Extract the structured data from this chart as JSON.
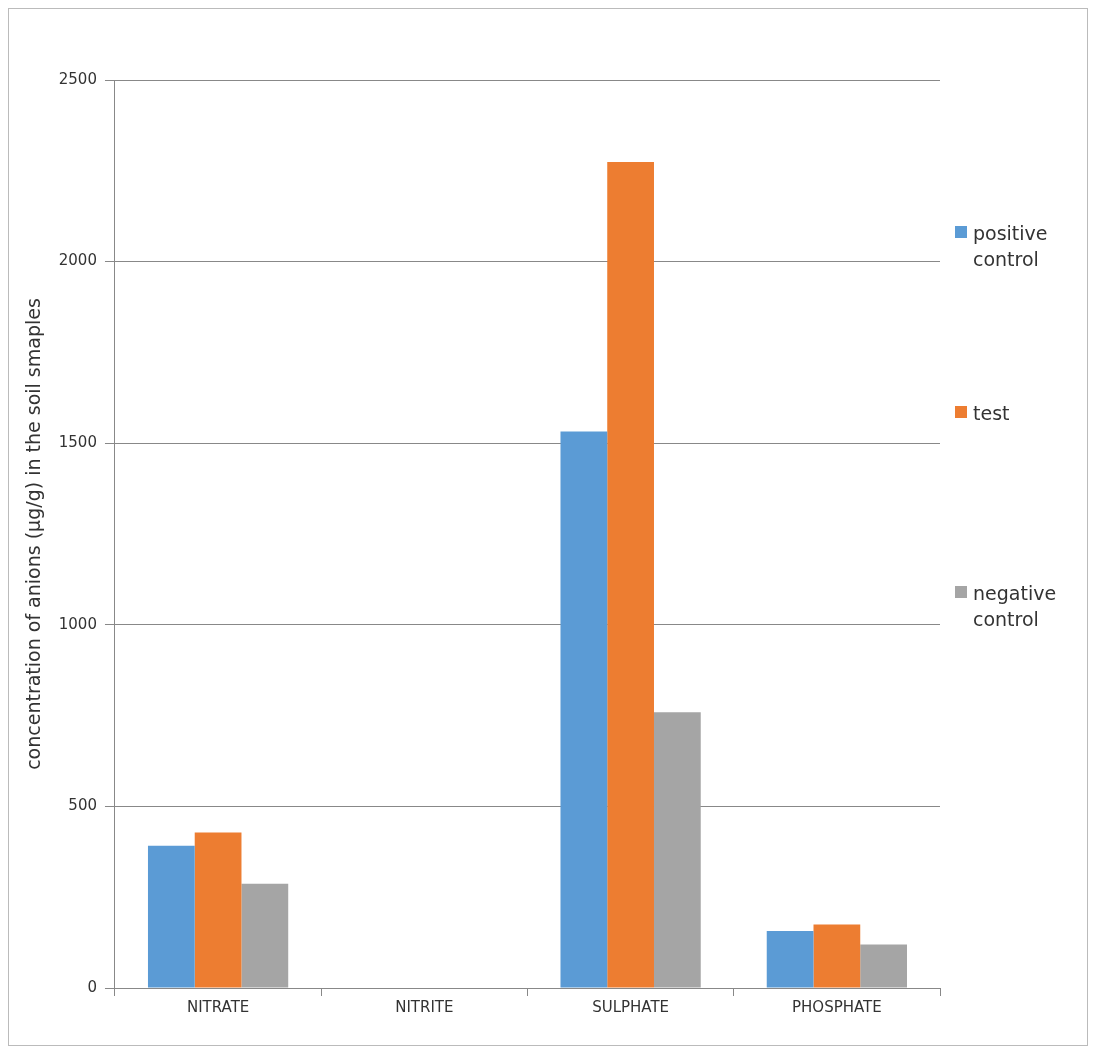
{
  "chart_data": {
    "type": "bar",
    "ylabel": "concentration of anions (µg/g) in the soil smaples",
    "categories": [
      "NITRATE",
      "NITRITE",
      "SULPHATE",
      "PHOSPHATE"
    ],
    "series": [
      {
        "name": "positive control",
        "color": "#5b9bd5",
        "values": [
          392,
          0,
          1532,
          157
        ]
      },
      {
        "name": "test",
        "color": "#ed7d31",
        "values": [
          428,
          0,
          2274,
          175
        ]
      },
      {
        "name": "negative control",
        "color": "#a5a5a5",
        "values": [
          287,
          0,
          759,
          120
        ]
      }
    ],
    "ylim": [
      0,
      2500
    ],
    "yticks": [
      0,
      500,
      1000,
      1500,
      2000,
      2500
    ],
    "grid": "y",
    "legend": "right"
  }
}
